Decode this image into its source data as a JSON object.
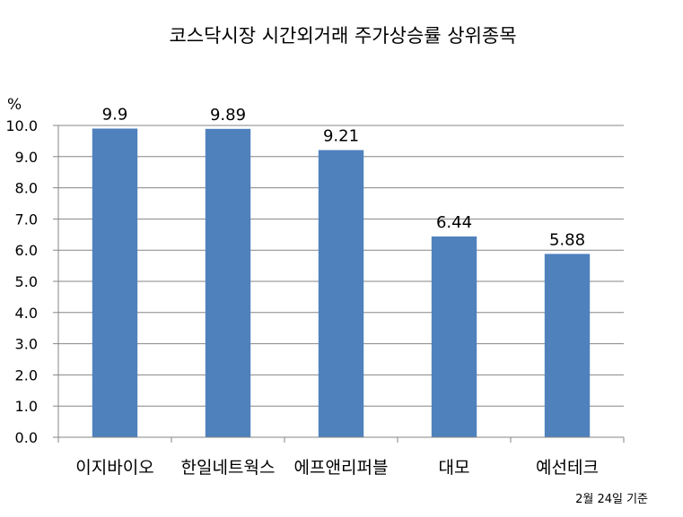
{
  "chart_data": {
    "type": "bar",
    "title": "코스닥시장 시간외거래  주가상승률 상위종목",
    "ylabel": "%",
    "ylim": [
      0,
      10
    ],
    "y_ticks": [
      "0.0",
      "1.0",
      "2.0",
      "3.0",
      "4.0",
      "5.0",
      "6.0",
      "7.0",
      "8.0",
      "9.0",
      "10.0"
    ],
    "grid": true,
    "categories": [
      "이지바이오",
      "한일네트웍스",
      "에프앤리퍼블",
      "대모",
      "예선테크"
    ],
    "values": [
      9.9,
      9.89,
      9.21,
      6.44,
      5.88
    ],
    "data_labels": [
      "9.9",
      "9.89",
      "9.21",
      "6.44",
      "5.88"
    ],
    "bar_color": "#4f81bd",
    "note": "2월 24일 기준"
  }
}
